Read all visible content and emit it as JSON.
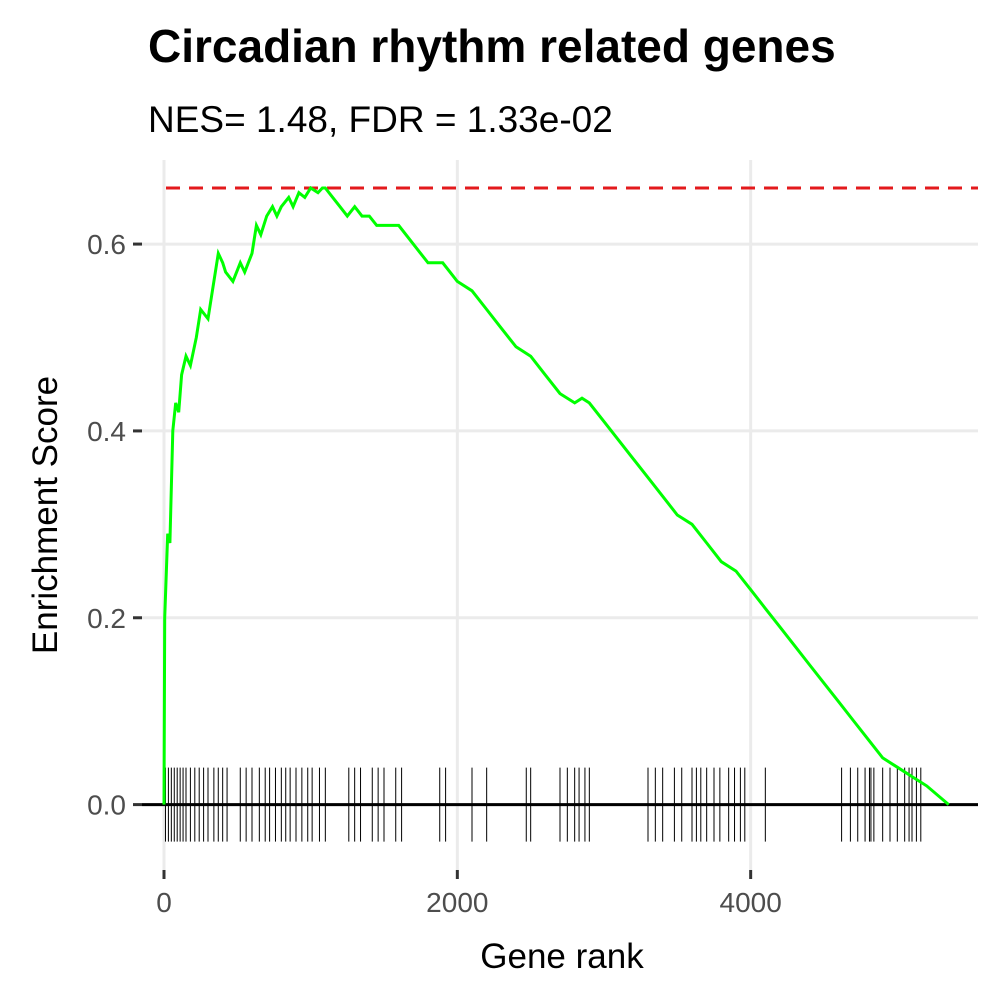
{
  "chart_data": {
    "type": "line",
    "title": "Circadian rhythm related genes",
    "subtitle": "NES= 1.48, FDR = 1.33e-02",
    "xlabel": "Gene rank",
    "ylabel": "Enrichment Score",
    "xlim": [
      -150,
      5550
    ],
    "ylim": [
      -0.07,
      0.69
    ],
    "x_ticks": [
      0,
      2000,
      4000
    ],
    "x_tick_labels": [
      "0",
      "2000",
      "4000"
    ],
    "y_ticks": [
      0.0,
      0.2,
      0.4,
      0.6
    ],
    "y_tick_labels": [
      "0.0",
      "0.2",
      "0.4",
      "0.6"
    ],
    "grid": true,
    "max_es": 0.66,
    "line_color": "#00ff00",
    "max_line_color": "#e31a1c",
    "series": [
      {
        "name": "Enrichment Score",
        "x": [
          0,
          5,
          25,
          40,
          60,
          80,
          100,
          120,
          150,
          180,
          220,
          250,
          300,
          330,
          370,
          400,
          420,
          470,
          520,
          550,
          600,
          630,
          660,
          700,
          740,
          770,
          800,
          850,
          880,
          920,
          960,
          1000,
          1050,
          1080,
          1100,
          1150,
          1200,
          1250,
          1300,
          1350,
          1400,
          1450,
          1500,
          1550,
          1600,
          1700,
          1800,
          1850,
          1900,
          1950,
          2000,
          2100,
          2200,
          2300,
          2400,
          2500,
          2600,
          2700,
          2800,
          2850,
          2900,
          3000,
          3100,
          3200,
          3300,
          3400,
          3500,
          3600,
          3700,
          3800,
          3900,
          4000,
          4100,
          4200,
          4300,
          4400,
          4500,
          4600,
          4700,
          4800,
          4900,
          5000,
          5100,
          5200,
          5350
        ],
        "y": [
          0.0,
          0.2,
          0.29,
          0.28,
          0.4,
          0.43,
          0.42,
          0.46,
          0.48,
          0.47,
          0.5,
          0.53,
          0.52,
          0.55,
          0.59,
          0.58,
          0.57,
          0.56,
          0.58,
          0.57,
          0.59,
          0.62,
          0.61,
          0.63,
          0.64,
          0.63,
          0.64,
          0.65,
          0.64,
          0.655,
          0.65,
          0.66,
          0.655,
          0.66,
          0.66,
          0.65,
          0.64,
          0.63,
          0.64,
          0.63,
          0.63,
          0.62,
          0.62,
          0.62,
          0.62,
          0.6,
          0.58,
          0.58,
          0.58,
          0.57,
          0.56,
          0.55,
          0.53,
          0.51,
          0.49,
          0.48,
          0.46,
          0.44,
          0.43,
          0.435,
          0.43,
          0.41,
          0.39,
          0.37,
          0.35,
          0.33,
          0.31,
          0.3,
          0.28,
          0.26,
          0.25,
          0.23,
          0.21,
          0.19,
          0.17,
          0.15,
          0.13,
          0.11,
          0.09,
          0.07,
          0.05,
          0.04,
          0.03,
          0.02,
          0.0
        ]
      }
    ],
    "gene_hits": [
      10,
      30,
      50,
      70,
      90,
      110,
      130,
      150,
      180,
      210,
      240,
      270,
      300,
      340,
      370,
      400,
      430,
      520,
      560,
      600,
      650,
      690,
      720,
      760,
      800,
      830,
      860,
      900,
      940,
      980,
      1010,
      1060,
      1100,
      1260,
      1300,
      1340,
      1420,
      1460,
      1500,
      1580,
      1620,
      1880,
      1920,
      2100,
      2200,
      2470,
      2500,
      2700,
      2750,
      2800,
      2830,
      2870,
      2900,
      3300,
      3350,
      3400,
      3480,
      3530,
      3600,
      3630,
      3660,
      3700,
      3750,
      3790,
      3850,
      3890,
      3930,
      3960,
      4100,
      4620,
      4680,
      4730,
      4780,
      4810,
      4820,
      4840,
      4900,
      4950,
      5000,
      5050,
      5080,
      5100,
      5130,
      5160
    ]
  }
}
